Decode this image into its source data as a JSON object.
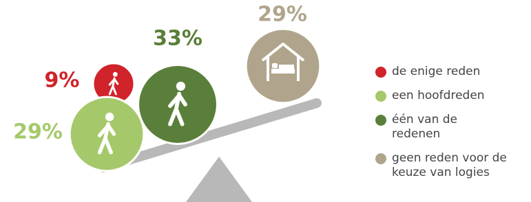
{
  "chart_data": {
    "type": "balance",
    "categories": [
      "de enige reden",
      "een hoofdreden",
      "één van de redenen",
      "geen reden voor de keuze van logies"
    ],
    "values": [
      9,
      29,
      33,
      29
    ],
    "value_labels": [
      "9%",
      "29%",
      "33%",
      "29%"
    ],
    "colors": [
      "#d1232a",
      "#a5c96a",
      "#5a7f3a",
      "#b0a58c"
    ]
  }
}
